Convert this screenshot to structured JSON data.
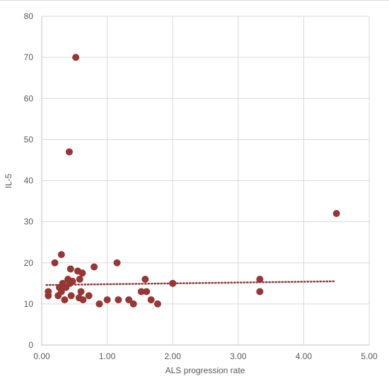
{
  "chart_data": {
    "type": "scatter",
    "xlabel": "ALS progression rate",
    "ylabel": "IL-5",
    "xlim": [
      0,
      5
    ],
    "ylim": [
      0,
      80
    ],
    "x_ticks": [
      "0.00",
      "1.00",
      "2.00",
      "3.00",
      "4.00",
      "5.00"
    ],
    "y_ticks": [
      "0",
      "10",
      "20",
      "30",
      "40",
      "50",
      "60",
      "70",
      "80"
    ],
    "grid": true,
    "legend": "none",
    "series": [
      {
        "color": "#953735",
        "points": [
          {
            "x": 0.1,
            "y": 13
          },
          {
            "x": 0.1,
            "y": 12
          },
          {
            "x": 0.2,
            "y": 20
          },
          {
            "x": 0.25,
            "y": 12
          },
          {
            "x": 0.27,
            "y": 14
          },
          {
            "x": 0.3,
            "y": 22
          },
          {
            "x": 0.3,
            "y": 13
          },
          {
            "x": 0.32,
            "y": 15
          },
          {
            "x": 0.35,
            "y": 11
          },
          {
            "x": 0.37,
            "y": 14
          },
          {
            "x": 0.4,
            "y": 16
          },
          {
            "x": 0.42,
            "y": 47
          },
          {
            "x": 0.43,
            "y": 15
          },
          {
            "x": 0.44,
            "y": 18.5
          },
          {
            "x": 0.45,
            "y": 12
          },
          {
            "x": 0.47,
            "y": 15.5
          },
          {
            "x": 0.52,
            "y": 70
          },
          {
            "x": 0.55,
            "y": 18
          },
          {
            "x": 0.57,
            "y": 11.5
          },
          {
            "x": 0.58,
            "y": 16
          },
          {
            "x": 0.6,
            "y": 13
          },
          {
            "x": 0.62,
            "y": 17.5
          },
          {
            "x": 0.63,
            "y": 11
          },
          {
            "x": 0.72,
            "y": 12
          },
          {
            "x": 0.8,
            "y": 19
          },
          {
            "x": 0.88,
            "y": 10
          },
          {
            "x": 1.0,
            "y": 11
          },
          {
            "x": 1.15,
            "y": 20
          },
          {
            "x": 1.17,
            "y": 11
          },
          {
            "x": 1.33,
            "y": 11
          },
          {
            "x": 1.4,
            "y": 10
          },
          {
            "x": 1.52,
            "y": 13
          },
          {
            "x": 1.58,
            "y": 16
          },
          {
            "x": 1.6,
            "y": 13
          },
          {
            "x": 1.67,
            "y": 11
          },
          {
            "x": 1.77,
            "y": 10
          },
          {
            "x": 2.0,
            "y": 15
          },
          {
            "x": 3.33,
            "y": 16
          },
          {
            "x": 3.33,
            "y": 13
          },
          {
            "x": 4.5,
            "y": 32
          }
        ]
      }
    ],
    "trendline": {
      "style": "dotted",
      "color": "#953735",
      "x": [
        0.07,
        4.48
      ],
      "y": [
        14.6,
        15.5
      ]
    }
  }
}
